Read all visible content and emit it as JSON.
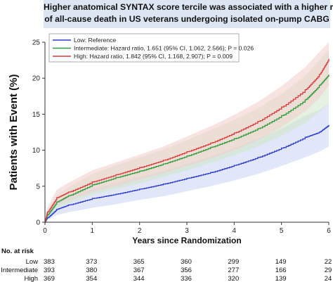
{
  "title_lines": [
    "Higher anatomical SYNTAX score tercile was associated with a higher risk",
    "of all-cause death in US veterans undergoing isolated on-pump CABG"
  ],
  "chart_data": {
    "type": "line",
    "ylabel": "Patients with Event (%)",
    "xlabel": "Years since Randomization",
    "xlim": [
      0,
      6
    ],
    "ylim": [
      0,
      25
    ],
    "x_ticks": [
      "0",
      "1",
      "2",
      "3",
      "4",
      "5",
      "6"
    ],
    "y_ticks": [
      "0",
      "5",
      "10",
      "15",
      "20",
      "25"
    ],
    "legend_position": "top-left",
    "series": [
      {
        "name": "Low: Reference",
        "color": "#2b3bd0",
        "band_color": "#c9d2f2",
        "x": [
          0,
          0.05,
          0.25,
          0.5,
          1.0,
          1.5,
          2.0,
          2.5,
          3.0,
          3.5,
          4.0,
          4.5,
          5.0,
          5.5,
          5.8,
          6.0
        ],
        "y": [
          0,
          0.6,
          1.8,
          2.4,
          3.3,
          3.9,
          4.6,
          5.3,
          6.1,
          6.9,
          7.9,
          9.0,
          10.3,
          11.8,
          12.5,
          13.5
        ],
        "lower": [
          0,
          0.3,
          1.0,
          1.4,
          2.0,
          2.5,
          3.1,
          3.6,
          4.3,
          5.0,
          5.8,
          6.7,
          7.8,
          9.0,
          9.8,
          10.5
        ],
        "upper": [
          0,
          1.0,
          2.6,
          3.5,
          4.6,
          5.5,
          6.3,
          7.1,
          8.1,
          9.1,
          10.3,
          11.6,
          13.0,
          14.8,
          15.6,
          16.5
        ]
      },
      {
        "name": "Intermediate: Hazard ratio, 1.651 (95% CI, 1.062, 2.566); P = 0.026",
        "color": "#2e9a3a",
        "band_color": "#cfe8c9",
        "x": [
          0,
          0.05,
          0.25,
          0.5,
          1.0,
          1.5,
          2.0,
          2.5,
          3.0,
          3.5,
          4.0,
          4.5,
          5.0,
          5.5,
          5.8,
          6.0
        ],
        "y": [
          0,
          1.0,
          2.8,
          3.7,
          5.2,
          6.2,
          7.1,
          8.1,
          9.2,
          10.4,
          11.6,
          13.0,
          14.8,
          17.0,
          19.0,
          20.5
        ],
        "lower": [
          0,
          0.6,
          1.9,
          2.6,
          3.8,
          4.6,
          5.4,
          6.3,
          7.2,
          8.2,
          9.3,
          10.5,
          12.0,
          13.8,
          15.3,
          16.5
        ],
        "upper": [
          0,
          1.5,
          3.8,
          4.9,
          6.7,
          7.9,
          9.0,
          10.1,
          11.4,
          12.8,
          14.2,
          15.8,
          17.8,
          20.3,
          22.5,
          24.0
        ]
      },
      {
        "name": "High: Hazard ratio, 1.842 (95% CI, 1.168, 2.907); P = 0.009",
        "color": "#d83a3a",
        "band_color": "#f2cccc",
        "x": [
          0,
          0.05,
          0.25,
          0.5,
          1.0,
          1.5,
          2.0,
          2.5,
          3.0,
          3.5,
          4.0,
          4.5,
          5.0,
          5.5,
          5.8,
          6.0
        ],
        "y": [
          0,
          1.4,
          3.4,
          4.2,
          5.6,
          6.6,
          7.6,
          8.6,
          9.8,
          11.0,
          12.4,
          14.0,
          16.0,
          18.4,
          20.5,
          22.7
        ],
        "lower": [
          0,
          0.9,
          2.4,
          3.0,
          4.2,
          5.0,
          5.9,
          6.8,
          7.8,
          8.8,
          10.0,
          11.4,
          13.2,
          15.4,
          17.2,
          19.0
        ],
        "upper": [
          0,
          2.0,
          4.5,
          5.5,
          7.2,
          8.3,
          9.4,
          10.5,
          11.9,
          13.3,
          14.9,
          16.7,
          18.9,
          21.5,
          23.6,
          25.0
        ]
      }
    ],
    "risk_table": {
      "title": "No. at risk",
      "rows": [
        {
          "label": "Low",
          "values": [
            "383",
            "373",
            "365",
            "360",
            "299",
            "149",
            "22"
          ]
        },
        {
          "label": "Intermediate",
          "values": [
            "393",
            "380",
            "367",
            "356",
            "277",
            "166",
            "29"
          ]
        },
        {
          "label": "High",
          "values": [
            "369",
            "354",
            "344",
            "336",
            "320",
            "139",
            "24"
          ]
        }
      ]
    }
  }
}
